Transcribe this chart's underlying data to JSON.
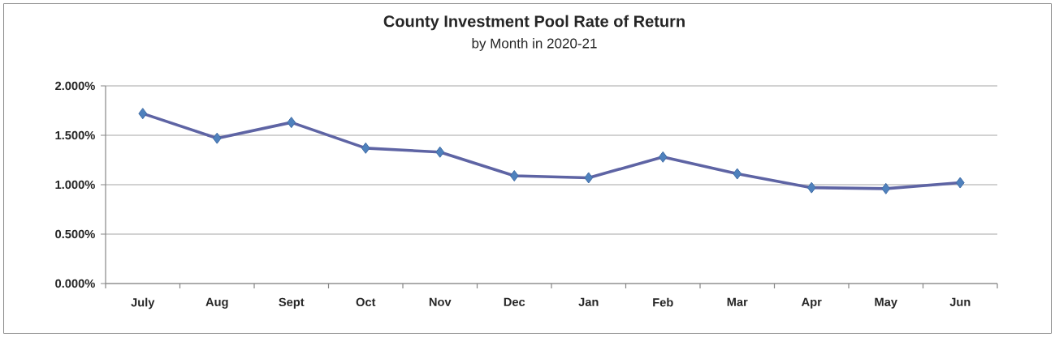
{
  "chart_data": {
    "type": "line",
    "title": "County Investment Pool Rate of Return",
    "subtitle": "by Month in 2020-21",
    "categories": [
      "July",
      "Aug",
      "Sept",
      "Oct",
      "Nov",
      "Dec",
      "Jan",
      "Feb",
      "Mar",
      "Apr",
      "May",
      "Jun"
    ],
    "series": [
      {
        "color": "#5e64a4",
        "values": [
          1.72,
          1.47,
          1.63,
          1.37,
          1.33,
          1.09,
          1.07,
          1.28,
          1.11,
          0.97,
          0.96,
          1.02
        ]
      }
    ],
    "ylim": [
      0,
      2
    ],
    "yticks": [
      {
        "value": 0,
        "label": "0.000%"
      },
      {
        "value": 0.5,
        "label": "0.500%"
      },
      {
        "value": 1,
        "label": "1.000%"
      },
      {
        "value": 1.5,
        "label": "1.500%"
      },
      {
        "value": 2,
        "label": "2.000%"
      }
    ],
    "grid": "y",
    "marker": "diamond",
    "line_style": "solid"
  }
}
